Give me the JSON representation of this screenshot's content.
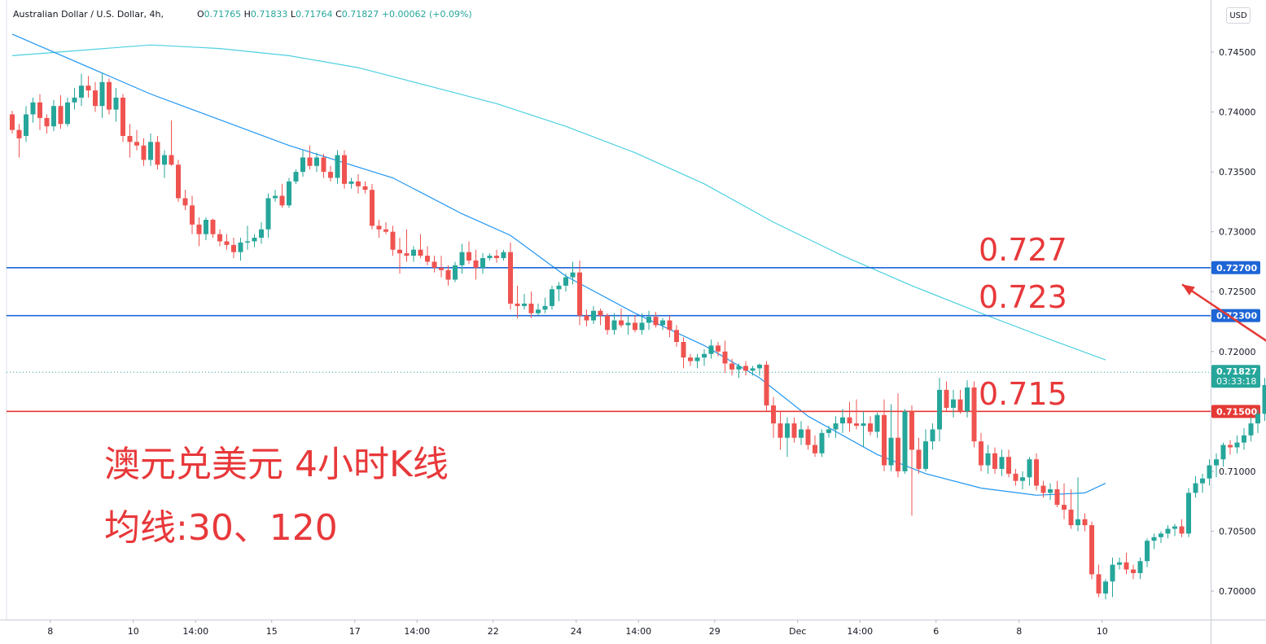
{
  "header": {
    "symbol": "Australian Dollar / U.S. Dollar, 4h,",
    "ohlc": [
      {
        "k": "O",
        "v": "0.71765"
      },
      {
        "k": "H",
        "v": "0.71833"
      },
      {
        "k": "L",
        "v": "0.71764"
      },
      {
        "k": "C",
        "v": "0.71827"
      }
    ],
    "change": "+0.00062 (+0.09%)",
    "currency": "USD"
  },
  "annotations": {
    "title": "澳元兑美元 4小时K线",
    "ma_label": "均线:30、120",
    "level_high": "0.727",
    "level_mid": "0.723",
    "level_low": "0.715"
  },
  "colors": {
    "up": "#26a69a",
    "down": "#ef5350",
    "ma30": "#2196f3",
    "ma120": "#4dd0e1",
    "resistance": "#1e66d6",
    "support": "#e53935",
    "annotation": "#e8383a",
    "arrow": "#e53935"
  },
  "chart_data": {
    "type": "candlestick",
    "timeframe": "4h",
    "y_axis": {
      "min": 0.6985,
      "max": 0.7475,
      "ticks": [
        "0.74500",
        "0.74000",
        "0.73500",
        "0.73000",
        "0.72500",
        "0.72000",
        "0.71500",
        "0.71000",
        "0.70500",
        "0.70000"
      ]
    },
    "x_axis": {
      "ticks": [
        {
          "label": "8",
          "t": 5.5
        },
        {
          "label": "10",
          "t": 17.5
        },
        {
          "label": "14:00",
          "t": 26.5
        },
        {
          "label": "15",
          "t": 37.5
        },
        {
          "label": "17",
          "t": 49.5
        },
        {
          "label": "14:00",
          "t": 58.5
        },
        {
          "label": "22",
          "t": 69.5
        },
        {
          "label": "24",
          "t": 81.5
        },
        {
          "label": "14:00",
          "t": 90.5
        },
        {
          "label": "29",
          "t": 101.5
        },
        {
          "label": "Dec",
          "t": 113.5
        },
        {
          "label": "14:00",
          "t": 122.5
        },
        {
          "label": "6",
          "t": 133.5
        },
        {
          "label": "8",
          "t": 145.5
        },
        {
          "label": "10",
          "t": 157.5
        }
      ]
    },
    "horizontal_levels": [
      {
        "label": "0.72700",
        "value": 0.727,
        "color": "#1e66d6"
      },
      {
        "label": "0.72300",
        "value": 0.723,
        "color": "#1e66d6"
      },
      {
        "label": "0.71500",
        "value": 0.715,
        "color": "#e53935"
      }
    ],
    "last_price": {
      "label": "0.71827",
      "value": 0.71827,
      "countdown": "03:33:18"
    },
    "candles_ohlc": [
      [
        0.7398,
        0.7401,
        0.7382,
        0.7385
      ],
      [
        0.7385,
        0.739,
        0.7362,
        0.7378
      ],
      [
        0.738,
        0.7405,
        0.7375,
        0.7398
      ],
      [
        0.7398,
        0.7412,
        0.7391,
        0.7408
      ],
      [
        0.7408,
        0.7415,
        0.7385,
        0.7395
      ],
      [
        0.7395,
        0.7398,
        0.7382,
        0.7388
      ],
      [
        0.7388,
        0.741,
        0.7384,
        0.7405
      ],
      [
        0.7405,
        0.7414,
        0.7386,
        0.739
      ],
      [
        0.739,
        0.7412,
        0.7388,
        0.7408
      ],
      [
        0.7408,
        0.742,
        0.7402,
        0.7412
      ],
      [
        0.7412,
        0.7432,
        0.7405,
        0.7422
      ],
      [
        0.7422,
        0.743,
        0.7412,
        0.7418
      ],
      [
        0.7418,
        0.7425,
        0.74,
        0.7405
      ],
      [
        0.7405,
        0.7432,
        0.7395,
        0.7425
      ],
      [
        0.7425,
        0.7428,
        0.7398,
        0.7402
      ],
      [
        0.7402,
        0.742,
        0.7392,
        0.7412
      ],
      [
        0.7412,
        0.7415,
        0.7375,
        0.738
      ],
      [
        0.738,
        0.739,
        0.7362,
        0.7375
      ],
      [
        0.7375,
        0.7385,
        0.7368,
        0.7372
      ],
      [
        0.7372,
        0.7378,
        0.7355,
        0.736
      ],
      [
        0.736,
        0.7382,
        0.7355,
        0.7375
      ],
      [
        0.7375,
        0.738,
        0.7352,
        0.7356
      ],
      [
        0.7356,
        0.7368,
        0.7345,
        0.7364
      ],
      [
        0.7364,
        0.7393,
        0.7355,
        0.7356
      ],
      [
        0.7356,
        0.736,
        0.7325,
        0.7328
      ],
      [
        0.7328,
        0.7335,
        0.7318,
        0.7322
      ],
      [
        0.7322,
        0.733,
        0.7298,
        0.7306
      ],
      [
        0.7306,
        0.7312,
        0.7288,
        0.7298
      ],
      [
        0.7298,
        0.7312,
        0.7293,
        0.731
      ],
      [
        0.731,
        0.7311,
        0.7295,
        0.7298
      ],
      [
        0.7298,
        0.7302,
        0.7288,
        0.7292
      ],
      [
        0.7292,
        0.7298,
        0.7285,
        0.7289
      ],
      [
        0.7289,
        0.7295,
        0.7278,
        0.7283
      ],
      [
        0.7283,
        0.7295,
        0.7276,
        0.7291
      ],
      [
        0.7291,
        0.7305,
        0.7285,
        0.7292
      ],
      [
        0.7292,
        0.7298,
        0.7287,
        0.7295
      ],
      [
        0.7295,
        0.7308,
        0.729,
        0.7302
      ],
      [
        0.7302,
        0.7332,
        0.7295,
        0.7328
      ],
      [
        0.7328,
        0.7335,
        0.7325,
        0.733
      ],
      [
        0.733,
        0.734,
        0.732,
        0.7322
      ],
      [
        0.7322,
        0.7345,
        0.732,
        0.7342
      ],
      [
        0.7342,
        0.7352,
        0.734,
        0.735
      ],
      [
        0.735,
        0.7368,
        0.7346,
        0.7362
      ],
      [
        0.7362,
        0.7372,
        0.7352,
        0.7355
      ],
      [
        0.7355,
        0.7366,
        0.735,
        0.7362
      ],
      [
        0.7362,
        0.7365,
        0.7345,
        0.735
      ],
      [
        0.735,
        0.7355,
        0.7342,
        0.7345
      ],
      [
        0.7345,
        0.7368,
        0.734,
        0.7364
      ],
      [
        0.7364,
        0.7368,
        0.7336,
        0.734
      ],
      [
        0.734,
        0.7345,
        0.7336,
        0.7342
      ],
      [
        0.7342,
        0.7348,
        0.7332,
        0.7338
      ],
      [
        0.7338,
        0.7342,
        0.7332,
        0.7335
      ],
      [
        0.7335,
        0.734,
        0.7302,
        0.7305
      ],
      [
        0.7305,
        0.731,
        0.7295,
        0.7302
      ],
      [
        0.7302,
        0.7308,
        0.7298,
        0.73
      ],
      [
        0.73,
        0.7305,
        0.728,
        0.7285
      ],
      [
        0.7285,
        0.7295,
        0.7265,
        0.7282
      ],
      [
        0.7282,
        0.7302,
        0.7275,
        0.728
      ],
      [
        0.728,
        0.7288,
        0.7275,
        0.7285
      ],
      [
        0.7285,
        0.7298,
        0.7278,
        0.728
      ],
      [
        0.728,
        0.7288,
        0.7272,
        0.7275
      ],
      [
        0.7275,
        0.728,
        0.7266,
        0.727
      ],
      [
        0.727,
        0.728,
        0.7262,
        0.7268
      ],
      [
        0.7268,
        0.7272,
        0.7255,
        0.726
      ],
      [
        0.726,
        0.7275,
        0.7258,
        0.7272
      ],
      [
        0.7272,
        0.729,
        0.7265,
        0.7283
      ],
      [
        0.7283,
        0.7292,
        0.7273,
        0.7276
      ],
      [
        0.7276,
        0.7285,
        0.726,
        0.727
      ],
      [
        0.727,
        0.7282,
        0.7265,
        0.7278
      ],
      [
        0.7278,
        0.7282,
        0.7276,
        0.728
      ],
      [
        0.728,
        0.7285,
        0.7274,
        0.7278
      ],
      [
        0.7278,
        0.7285,
        0.7276,
        0.7283
      ],
      [
        0.7283,
        0.7291,
        0.7235,
        0.724
      ],
      [
        0.724,
        0.7255,
        0.7228,
        0.7238
      ],
      [
        0.7238,
        0.7248,
        0.7235,
        0.724
      ],
      [
        0.724,
        0.725,
        0.7228,
        0.7232
      ],
      [
        0.7232,
        0.724,
        0.723,
        0.7235
      ],
      [
        0.7235,
        0.7245,
        0.7232,
        0.7238
      ],
      [
        0.7238,
        0.7255,
        0.7235,
        0.7252
      ],
      [
        0.7252,
        0.7258,
        0.7242,
        0.7255
      ],
      [
        0.7255,
        0.7265,
        0.725,
        0.7262
      ],
      [
        0.7262,
        0.7275,
        0.7256,
        0.7266
      ],
      [
        0.7266,
        0.7276,
        0.7222,
        0.723
      ],
      [
        0.723,
        0.7235,
        0.7221,
        0.7226
      ],
      [
        0.7226,
        0.7238,
        0.7223,
        0.7234
      ],
      [
        0.7234,
        0.7236,
        0.7222,
        0.723
      ],
      [
        0.723,
        0.7232,
        0.7214,
        0.7218
      ],
      [
        0.7218,
        0.7232,
        0.7214,
        0.7226
      ],
      [
        0.7226,
        0.7236,
        0.722,
        0.7222
      ],
      [
        0.7222,
        0.723,
        0.7214,
        0.7224
      ],
      [
        0.7224,
        0.723,
        0.7216,
        0.7218
      ],
      [
        0.7218,
        0.7232,
        0.7214,
        0.7224
      ],
      [
        0.7224,
        0.7234,
        0.7218,
        0.7229
      ],
      [
        0.7229,
        0.7233,
        0.722,
        0.7222
      ],
      [
        0.7222,
        0.7228,
        0.7218,
        0.7226
      ],
      [
        0.7226,
        0.723,
        0.7212,
        0.7218
      ],
      [
        0.7218,
        0.7222,
        0.7204,
        0.7208
      ],
      [
        0.7208,
        0.7212,
        0.7186,
        0.7195
      ],
      [
        0.7195,
        0.7198,
        0.7188,
        0.7192
      ],
      [
        0.7192,
        0.7198,
        0.7186,
        0.7195
      ],
      [
        0.7195,
        0.7202,
        0.7188,
        0.7198
      ],
      [
        0.7198,
        0.721,
        0.7194,
        0.7205
      ],
      [
        0.7205,
        0.7208,
        0.7196,
        0.72
      ],
      [
        0.72,
        0.7209,
        0.7182,
        0.719
      ],
      [
        0.719,
        0.7194,
        0.718,
        0.7185
      ],
      [
        0.7185,
        0.719,
        0.7178,
        0.7188
      ],
      [
        0.7188,
        0.7192,
        0.718,
        0.7184
      ],
      [
        0.7184,
        0.7188,
        0.718,
        0.7186
      ],
      [
        0.7186,
        0.719,
        0.718,
        0.7189
      ],
      [
        0.7189,
        0.7192,
        0.715,
        0.7155
      ],
      [
        0.7155,
        0.7162,
        0.7128,
        0.714
      ],
      [
        0.714,
        0.715,
        0.7118,
        0.7128
      ],
      [
        0.7128,
        0.7145,
        0.7112,
        0.714
      ],
      [
        0.714,
        0.7145,
        0.7124,
        0.7128
      ],
      [
        0.7128,
        0.7142,
        0.7122,
        0.7135
      ],
      [
        0.7135,
        0.7138,
        0.7118,
        0.7122
      ],
      [
        0.7122,
        0.713,
        0.7112,
        0.7115
      ],
      [
        0.7115,
        0.7135,
        0.7112,
        0.7132
      ],
      [
        0.7132,
        0.7138,
        0.7128,
        0.7135
      ],
      [
        0.7135,
        0.7146,
        0.7128,
        0.714
      ],
      [
        0.714,
        0.7152,
        0.7132,
        0.7145
      ],
      [
        0.7145,
        0.7158,
        0.7133,
        0.714
      ],
      [
        0.714,
        0.716,
        0.7135,
        0.7138
      ],
      [
        0.7138,
        0.715,
        0.712,
        0.714
      ],
      [
        0.714,
        0.7146,
        0.713,
        0.7133
      ],
      [
        0.7133,
        0.7149,
        0.7128,
        0.7147
      ],
      [
        0.7147,
        0.716,
        0.71,
        0.7105
      ],
      [
        0.7105,
        0.7156,
        0.71,
        0.7128
      ],
      [
        0.7128,
        0.7165,
        0.7095,
        0.71
      ],
      [
        0.71,
        0.7152,
        0.7098,
        0.715
      ],
      [
        0.715,
        0.7155,
        0.7063,
        0.7118
      ],
      [
        0.7118,
        0.7128,
        0.7098,
        0.7102
      ],
      [
        0.7102,
        0.7135,
        0.71,
        0.7125
      ],
      [
        0.7125,
        0.714,
        0.7118,
        0.7135
      ],
      [
        0.7135,
        0.7178,
        0.7125,
        0.7168
      ],
      [
        0.7168,
        0.7175,
        0.715,
        0.7153
      ],
      [
        0.7153,
        0.7168,
        0.7145,
        0.716
      ],
      [
        0.716,
        0.7168,
        0.7148,
        0.715
      ],
      [
        0.715,
        0.7176,
        0.7145,
        0.717
      ],
      [
        0.717,
        0.7175,
        0.712,
        0.7125
      ],
      [
        0.7125,
        0.7132,
        0.71,
        0.7105
      ],
      [
        0.7105,
        0.7122,
        0.7098,
        0.7115
      ],
      [
        0.7115,
        0.712,
        0.7098,
        0.7102
      ],
      [
        0.7102,
        0.7118,
        0.7096,
        0.7112
      ],
      [
        0.7112,
        0.7118,
        0.7095,
        0.7098
      ],
      [
        0.7098,
        0.7102,
        0.7088,
        0.7092
      ],
      [
        0.7092,
        0.71,
        0.7085,
        0.7095
      ],
      [
        0.7095,
        0.7112,
        0.7088,
        0.711
      ],
      [
        0.711,
        0.7115,
        0.7084,
        0.7088
      ],
      [
        0.7088,
        0.7092,
        0.7078,
        0.7082
      ],
      [
        0.7082,
        0.709,
        0.7076,
        0.7085
      ],
      [
        0.7085,
        0.7092,
        0.707,
        0.7072
      ],
      [
        0.7072,
        0.709,
        0.706,
        0.7068
      ],
      [
        0.7068,
        0.7085,
        0.7052,
        0.7055
      ],
      [
        0.7055,
        0.7095,
        0.705,
        0.706
      ],
      [
        0.706,
        0.7065,
        0.705,
        0.7055
      ],
      [
        0.7055,
        0.7058,
        0.701,
        0.7014
      ],
      [
        0.7014,
        0.7022,
        0.6995,
        0.6998
      ],
      [
        0.6998,
        0.701,
        0.6993,
        0.7008
      ],
      [
        0.7008,
        0.7028,
        0.6995,
        0.7022
      ],
      [
        0.7022,
        0.7028,
        0.7018,
        0.7024
      ],
      [
        0.7024,
        0.7032,
        0.7014,
        0.7018
      ],
      [
        0.7018,
        0.7022,
        0.701,
        0.7015
      ],
      [
        0.7015,
        0.7028,
        0.701,
        0.7025
      ],
      [
        0.7025,
        0.7044,
        0.702,
        0.7042
      ],
      [
        0.7042,
        0.7048,
        0.7035,
        0.7045
      ],
      [
        0.7045,
        0.705,
        0.704,
        0.7048
      ],
      [
        0.7048,
        0.7055,
        0.7044,
        0.7052
      ],
      [
        0.7052,
        0.7056,
        0.7046,
        0.7054
      ],
      [
        0.7054,
        0.706,
        0.7045,
        0.7048
      ],
      [
        0.7048,
        0.7086,
        0.7045,
        0.7082
      ],
      [
        0.7082,
        0.7096,
        0.7078,
        0.709
      ],
      [
        0.709,
        0.7098,
        0.7082,
        0.7094
      ],
      [
        0.7094,
        0.711,
        0.7088,
        0.7105
      ],
      [
        0.7105,
        0.7115,
        0.7095,
        0.711
      ],
      [
        0.711,
        0.7124,
        0.7104,
        0.7122
      ],
      [
        0.7122,
        0.7126,
        0.7114,
        0.712
      ],
      [
        0.712,
        0.713,
        0.7115,
        0.7124
      ],
      [
        0.7124,
        0.7136,
        0.7118,
        0.713
      ],
      [
        0.713,
        0.7145,
        0.7125,
        0.714
      ],
      [
        0.714,
        0.7152,
        0.7132,
        0.7148
      ],
      [
        0.7148,
        0.7178,
        0.7142,
        0.7172
      ],
      [
        0.7172,
        0.7184,
        0.716,
        0.7165
      ],
      [
        0.7165,
        0.7178,
        0.7158,
        0.7175
      ],
      [
        0.7175,
        0.718,
        0.7168,
        0.7171
      ],
      [
        0.7171,
        0.7176,
        0.716,
        0.7164
      ],
      [
        0.7164,
        0.718,
        0.716,
        0.7177
      ],
      [
        0.7177,
        0.7183,
        0.7176,
        0.7183
      ]
    ],
    "ma30": [
      [
        0,
        0.7465
      ],
      [
        20,
        0.7415
      ],
      [
        40,
        0.7372
      ],
      [
        55,
        0.7345
      ],
      [
        65,
        0.7315
      ],
      [
        72,
        0.7297
      ],
      [
        80,
        0.7263
      ],
      [
        90,
        0.7232
      ],
      [
        100,
        0.7205
      ],
      [
        108,
        0.7178
      ],
      [
        115,
        0.7146
      ],
      [
        125,
        0.7114
      ],
      [
        132,
        0.7098
      ],
      [
        140,
        0.7086
      ],
      [
        148,
        0.708
      ],
      [
        155,
        0.7082
      ],
      [
        158,
        0.709
      ]
    ],
    "ma120": [
      [
        0,
        0.7447
      ],
      [
        20,
        0.7456
      ],
      [
        30,
        0.7453
      ],
      [
        40,
        0.7447
      ],
      [
        50,
        0.7437
      ],
      [
        60,
        0.7422
      ],
      [
        70,
        0.7407
      ],
      [
        80,
        0.7388
      ],
      [
        90,
        0.7366
      ],
      [
        100,
        0.734
      ],
      [
        110,
        0.7308
      ],
      [
        120,
        0.728
      ],
      [
        130,
        0.7255
      ],
      [
        140,
        0.7232
      ],
      [
        150,
        0.721
      ],
      [
        158,
        0.7193
      ]
    ]
  }
}
